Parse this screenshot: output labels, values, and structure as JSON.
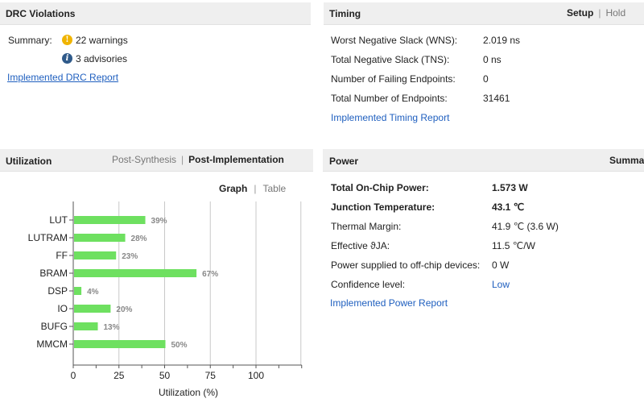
{
  "drc": {
    "title": "DRC Violations",
    "summary_label": "Summary:",
    "warnings": "22 warnings",
    "advisories": "3 advisories",
    "report_link": "Implemented DRC Report",
    "warning_icon_glyph": "!",
    "info_icon_glyph": "i",
    "warning_color": "#f0b400",
    "info_color": "#2f5a8a"
  },
  "timing": {
    "title": "Timing",
    "tab_setup": "Setup",
    "tab_hold": "Hold",
    "tab_sep": "|",
    "rows": [
      {
        "label": "Worst Negative Slack (WNS):",
        "value": "2.019 ns"
      },
      {
        "label": "Total Negative Slack (TNS):",
        "value": "0 ns"
      },
      {
        "label": "Number of Failing Endpoints:",
        "value": "0"
      },
      {
        "label": "Total Number of Endpoints:",
        "value": "31461"
      }
    ],
    "report_link": "Implemented Timing Report"
  },
  "utilization": {
    "title": "Utilization",
    "tab_post_synth": "Post-Synthesis",
    "tab_post_impl": "Post-Implementation",
    "tab_sep": "|",
    "view_graph": "Graph",
    "view_table": "Table",
    "view_sep": "|"
  },
  "chart_data": {
    "type": "bar",
    "orientation": "horizontal",
    "categories": [
      "LUT",
      "LUTRAM",
      "FF",
      "BRAM",
      "DSP",
      "IO",
      "BUFG",
      "MMCM"
    ],
    "values": [
      39,
      28,
      23,
      67,
      4,
      20,
      13,
      50
    ],
    "value_labels": [
      "39%",
      "28%",
      "23%",
      "67%",
      "4%",
      "20%",
      "13%",
      "50%"
    ],
    "xlabel": "Utilization (%)",
    "ylabel": "",
    "xlim": [
      0,
      125
    ],
    "xticks": [
      0,
      25,
      50,
      75,
      100
    ],
    "grid": true,
    "bar_color": "#6ee060"
  },
  "power": {
    "title": "Power",
    "tab_summary": "Summa",
    "rows": [
      {
        "label": "Total On-Chip Power:",
        "value": "1.573 W",
        "bold": true
      },
      {
        "label": "Junction Temperature:",
        "value": "43.1 ℃",
        "bold": true
      },
      {
        "label": "Thermal Margin:",
        "value": "41.9 ℃ (3.6 W)",
        "bold": false
      },
      {
        "label": "Effective ϑJA:",
        "value": "11.5 ℃/W",
        "bold": false
      },
      {
        "label": "Power supplied to off-chip devices:",
        "value": "0 W",
        "bold": false
      },
      {
        "label": "Confidence level:",
        "value": "Low",
        "bold": false,
        "link": true
      }
    ],
    "report_link": "Implemented Power Report"
  }
}
